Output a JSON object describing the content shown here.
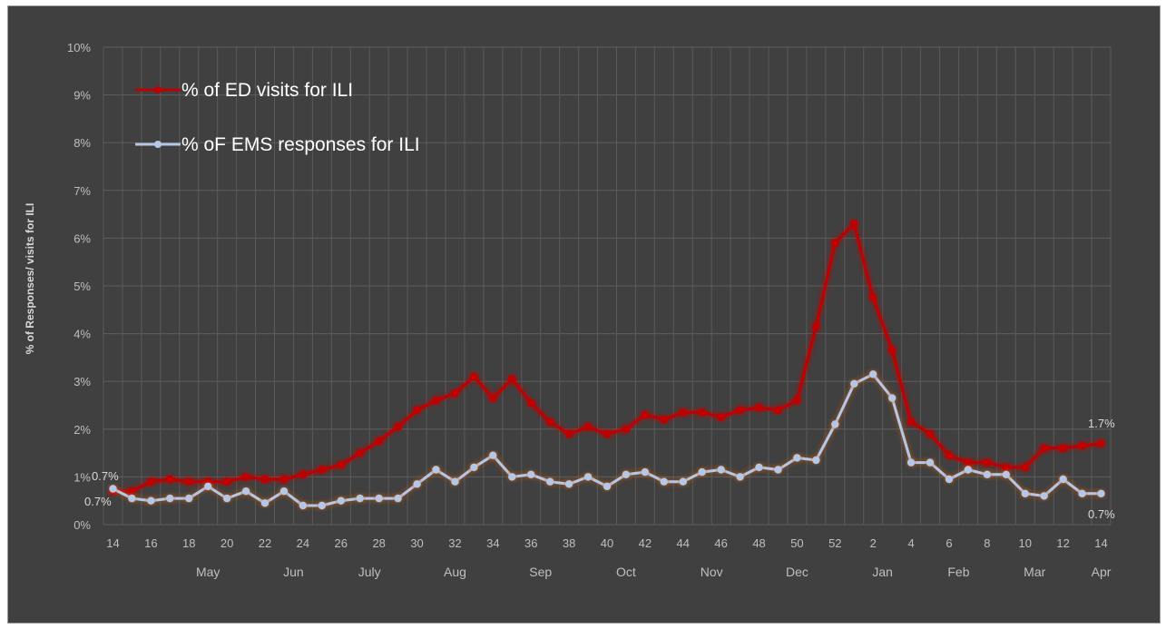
{
  "chart_data": {
    "type": "line",
    "title": "",
    "ylabel": "% of Responses/ visits for ILI",
    "xlabel": "",
    "ylim": [
      0,
      10
    ],
    "yticks": [
      "0%",
      "1%",
      "2%",
      "3%",
      "4%",
      "5%",
      "6%",
      "7%",
      "8%",
      "9%",
      "10%"
    ],
    "x": [
      14,
      15,
      16,
      17,
      18,
      19,
      20,
      21,
      22,
      23,
      24,
      25,
      26,
      27,
      28,
      29,
      30,
      31,
      32,
      33,
      34,
      35,
      36,
      37,
      38,
      39,
      40,
      41,
      42,
      43,
      44,
      45,
      46,
      47,
      48,
      49,
      50,
      51,
      52,
      1,
      2,
      3,
      4,
      5,
      6,
      7,
      8,
      9,
      10,
      11,
      12,
      13,
      14
    ],
    "xtick_labels": [
      "14",
      "16",
      "18",
      "20",
      "22",
      "24",
      "26",
      "28",
      "30",
      "32",
      "34",
      "36",
      "38",
      "40",
      "42",
      "44",
      "46",
      "48",
      "50",
      "52",
      "2",
      "4",
      "6",
      "8",
      "10",
      "12",
      "14"
    ],
    "months": [
      {
        "label": "May",
        "at_index": 5
      },
      {
        "label": "Jun",
        "at_index": 9.5
      },
      {
        "label": "July",
        "at_index": 13.5
      },
      {
        "label": "Aug",
        "at_index": 18
      },
      {
        "label": "Sep",
        "at_index": 22.5
      },
      {
        "label": "Oct",
        "at_index": 27
      },
      {
        "label": "Nov",
        "at_index": 31.5
      },
      {
        "label": "Dec",
        "at_index": 36
      },
      {
        "label": "Jan",
        "at_index": 40.5
      },
      {
        "label": "Feb",
        "at_index": 44.5
      },
      {
        "label": "Mar",
        "at_index": 48.5
      },
      {
        "label": "Apr",
        "at_index": 52
      }
    ],
    "series": [
      {
        "name": "% of ED visits for ILI",
        "color": "#c00000",
        "values": [
          0.7,
          0.7,
          0.9,
          0.95,
          0.9,
          0.9,
          0.9,
          1.0,
          0.95,
          0.95,
          1.05,
          1.15,
          1.25,
          1.5,
          1.75,
          2.05,
          2.4,
          2.6,
          2.75,
          3.1,
          2.65,
          3.05,
          2.55,
          2.15,
          1.9,
          2.05,
          1.9,
          2.0,
          2.3,
          2.2,
          2.35,
          2.35,
          2.25,
          2.4,
          2.45,
          2.4,
          2.6,
          4.15,
          5.9,
          6.3,
          4.75,
          3.65,
          2.15,
          1.9,
          1.45,
          1.3,
          1.3,
          1.2,
          1.2,
          1.6,
          1.6,
          1.65,
          1.7
        ],
        "first_label": "0.7%",
        "last_label": "1.7%"
      },
      {
        "name": "% oF EMS responses for ILI",
        "color": "#b4c7e7",
        "values": [
          0.75,
          0.55,
          0.5,
          0.55,
          0.55,
          0.8,
          0.55,
          0.7,
          0.45,
          0.7,
          0.4,
          0.4,
          0.5,
          0.55,
          0.55,
          0.55,
          0.85,
          1.15,
          0.9,
          1.2,
          1.45,
          1.0,
          1.05,
          0.9,
          0.85,
          1.0,
          0.8,
          1.05,
          1.1,
          0.9,
          0.9,
          1.1,
          1.15,
          1.0,
          1.2,
          1.15,
          1.4,
          1.35,
          2.1,
          2.95,
          3.15,
          2.65,
          1.3,
          1.3,
          0.95,
          1.15,
          1.05,
          1.05,
          0.65,
          0.6,
          0.95,
          0.65,
          0.65
        ],
        "first_label": "0.7%",
        "last_label": "0.7%"
      }
    ],
    "grid": true,
    "legend_placement": "top-left"
  }
}
